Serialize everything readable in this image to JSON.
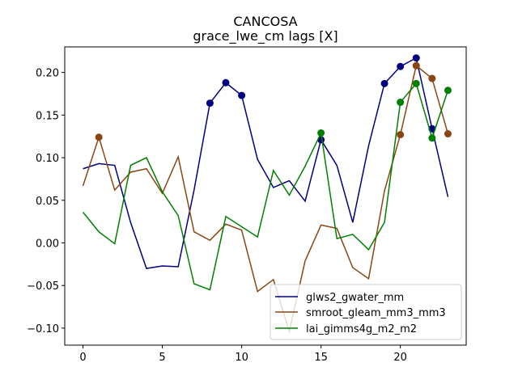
{
  "chart_data": {
    "type": "line",
    "title": "CANCOSA",
    "subtitle": "grace_lwe_cm lags [X]",
    "xlabel": "",
    "ylabel": "",
    "xlim": [
      -1.15,
      24.15
    ],
    "ylim": [
      -0.12,
      0.23
    ],
    "xticks": [
      0,
      5,
      10,
      15,
      20
    ],
    "yticks": [
      -0.1,
      -0.05,
      0.0,
      0.05,
      0.1,
      0.15,
      0.2
    ],
    "ytick_labels": [
      "−0.10",
      "−0.05",
      "0.00",
      "0.05",
      "0.10",
      "0.15",
      "0.20"
    ],
    "grid": false,
    "legend_position": "lower right",
    "x": [
      0,
      1,
      2,
      3,
      4,
      5,
      6,
      7,
      8,
      9,
      10,
      11,
      12,
      13,
      14,
      15,
      16,
      17,
      18,
      19,
      20,
      21,
      22,
      23
    ],
    "series": [
      {
        "name": "glws2_gwater_mm",
        "color": "#000080",
        "values": [
          0.087,
          0.093,
          0.091,
          0.024,
          -0.03,
          -0.027,
          -0.028,
          0.062,
          0.164,
          0.188,
          0.173,
          0.098,
          0.065,
          0.073,
          0.049,
          0.121,
          0.091,
          0.024,
          0.114,
          0.187,
          0.207,
          0.217,
          0.134,
          0.054
        ],
        "markers": [
          8,
          9,
          10,
          15,
          19,
          20,
          21,
          22
        ]
      },
      {
        "name": "smroot_gleam_mm3_mm3",
        "color": "#8B4513",
        "values": [
          0.067,
          0.124,
          0.062,
          0.083,
          0.087,
          0.058,
          0.101,
          0.013,
          0.003,
          0.022,
          0.015,
          -0.057,
          -0.043,
          -0.104,
          -0.021,
          0.021,
          0.017,
          -0.029,
          -0.042,
          0.061,
          0.127,
          0.208,
          0.193,
          0.128
        ],
        "markers": [
          1,
          20,
          21,
          22,
          23
        ]
      },
      {
        "name": "lai_gimms4g_m2_m2",
        "color": "#008000",
        "values": [
          0.036,
          0.013,
          -0.001,
          0.091,
          0.1,
          0.06,
          0.032,
          -0.048,
          -0.055,
          0.031,
          0.019,
          0.007,
          0.085,
          0.056,
          0.09,
          0.129,
          0.005,
          0.01,
          -0.008,
          0.024,
          0.165,
          0.187,
          0.123,
          0.179
        ],
        "markers": [
          15,
          20,
          21,
          22,
          23
        ]
      }
    ]
  }
}
